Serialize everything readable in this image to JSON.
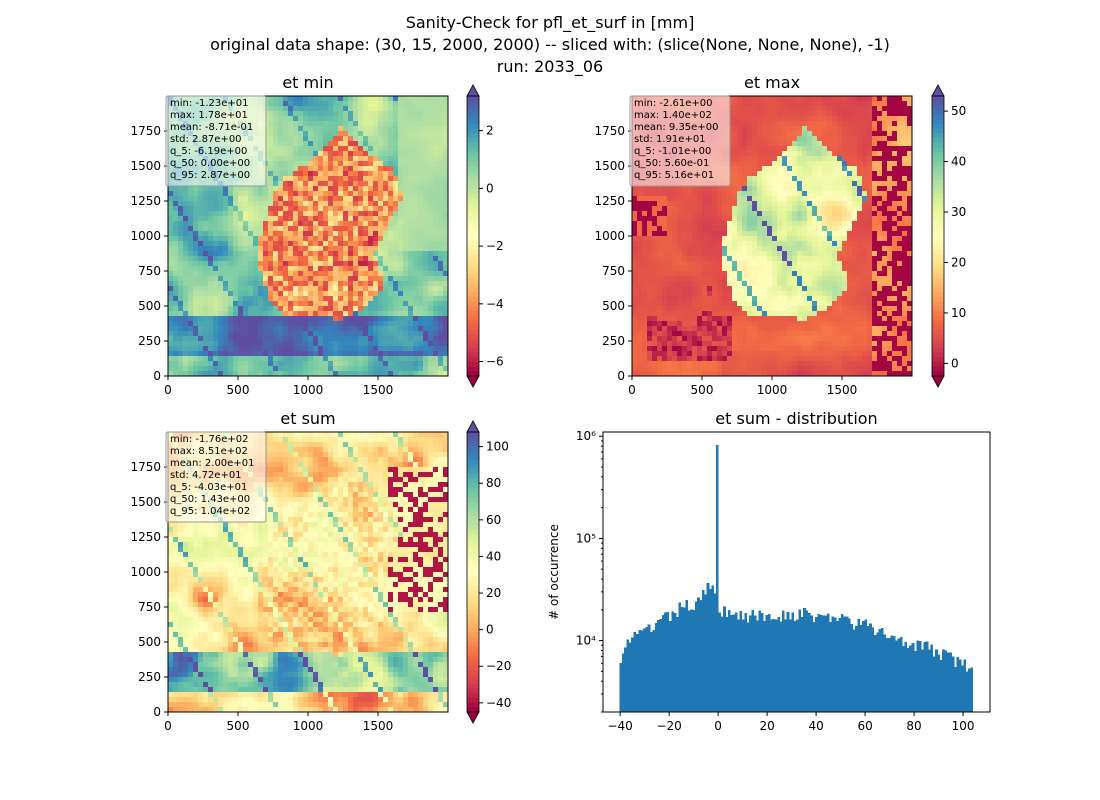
{
  "figure": {
    "title_lines": [
      "Sanity-Check for pfl_et_surf in [mm]",
      "original data shape: (30, 15, 2000, 2000) -- sliced with: (slice(None, None, None), -1)",
      "run: 2033_06"
    ]
  },
  "colormap": "Spectral",
  "chart_data": [
    {
      "type": "heatmap",
      "title": "et min",
      "xlim": [
        0,
        2000
      ],
      "ylim": [
        0,
        2000
      ],
      "x_ticks": [
        "0",
        "500",
        "1000",
        "1500"
      ],
      "y_ticks": [
        "0",
        "250",
        "500",
        "750",
        "1000",
        "1250",
        "1500",
        "1750"
      ],
      "colorbar": {
        "vmin": -6.5,
        "vmax": 3.2,
        "ticks": [
          "-6",
          "-4",
          "-2",
          "0",
          "2"
        ],
        "extend": "both"
      },
      "stats": [
        "min: -1.23e+01",
        "max: 1.78e+01",
        "mean: -8.71e-01",
        "std: 2.87e+00",
        "q_5: -6.19e+00",
        "q_50: 0.00e+00",
        "q_95: 2.87e+00"
      ]
    },
    {
      "type": "heatmap",
      "title": "et max",
      "xlim": [
        0,
        2000
      ],
      "ylim": [
        0,
        2000
      ],
      "x_ticks": [
        "0",
        "500",
        "1000",
        "1500"
      ],
      "y_ticks": [
        "0",
        "250",
        "500",
        "750",
        "1000",
        "1250",
        "1500",
        "1750"
      ],
      "colorbar": {
        "vmin": -2.5,
        "vmax": 53,
        "ticks": [
          "0",
          "10",
          "20",
          "30",
          "40",
          "50"
        ],
        "extend": "both"
      },
      "stats": [
        "min: -2.61e+00",
        "max: 1.40e+02",
        "mean: 9.35e+00",
        "std: 1.91e+01",
        "q_5: -1.01e+00",
        "q_50: 5.60e-01",
        "q_95: 5.16e+01"
      ]
    },
    {
      "type": "heatmap",
      "title": "et sum",
      "xlim": [
        0,
        2000
      ],
      "ylim": [
        0,
        2000
      ],
      "x_ticks": [
        "0",
        "500",
        "1000",
        "1500"
      ],
      "y_ticks": [
        "0",
        "250",
        "500",
        "750",
        "1000",
        "1250",
        "1500",
        "1750"
      ],
      "colorbar": {
        "vmin": -45,
        "vmax": 108,
        "ticks": [
          "-40",
          "-20",
          "0",
          "20",
          "40",
          "60",
          "80",
          "100"
        ],
        "extend": "both"
      },
      "stats": [
        "min: -1.76e+02",
        "max: 8.51e+02",
        "mean: 2.00e+01",
        "std: 4.72e+01",
        "q_5: -4.03e+01",
        "q_50: 1.43e+00",
        "q_95: 1.04e+02"
      ]
    },
    {
      "type": "bar",
      "title": "et sum - distribution",
      "xlabel": "",
      "ylabel": "# of occurrence",
      "yscale": "log",
      "xlim": [
        -47,
        111
      ],
      "ylim": [
        2000,
        1100000
      ],
      "x_ticks": [
        -40,
        -20,
        0,
        20,
        40,
        60,
        80,
        100
      ],
      "y_ticks": [
        {
          "value": 10000,
          "label": "10⁴"
        },
        {
          "value": 100000,
          "label": "10⁵"
        },
        {
          "value": 1000000,
          "label": "10⁶"
        }
      ],
      "color": "#1f77b4",
      "bin_range": [
        -40.3,
        104
      ],
      "anchors": [
        [
          -40,
          7000
        ],
        [
          -38,
          9500
        ],
        [
          -35,
          10500
        ],
        [
          -30,
          12000
        ],
        [
          -25,
          14500
        ],
        [
          -20,
          17000
        ],
        [
          -15,
          21000
        ],
        [
          -10,
          23000
        ],
        [
          -7,
          28000
        ],
        [
          -5,
          33000
        ],
        [
          -3,
          38000
        ],
        [
          -1,
          25000
        ],
        [
          1,
          16000
        ],
        [
          3,
          20000
        ],
        [
          8,
          18500
        ],
        [
          15,
          17000
        ],
        [
          22,
          17500
        ],
        [
          30,
          18500
        ],
        [
          40,
          17500
        ],
        [
          50,
          16500
        ],
        [
          55,
          15000
        ],
        [
          60,
          14000
        ],
        [
          65,
          12500
        ],
        [
          70,
          11000
        ],
        [
          75,
          10500
        ],
        [
          80,
          9500
        ],
        [
          85,
          8500
        ],
        [
          90,
          7800
        ],
        [
          95,
          6800
        ],
        [
          100,
          5800
        ],
        [
          104,
          5200
        ]
      ],
      "spike": {
        "x": -0.5,
        "value": 820000
      }
    }
  ]
}
